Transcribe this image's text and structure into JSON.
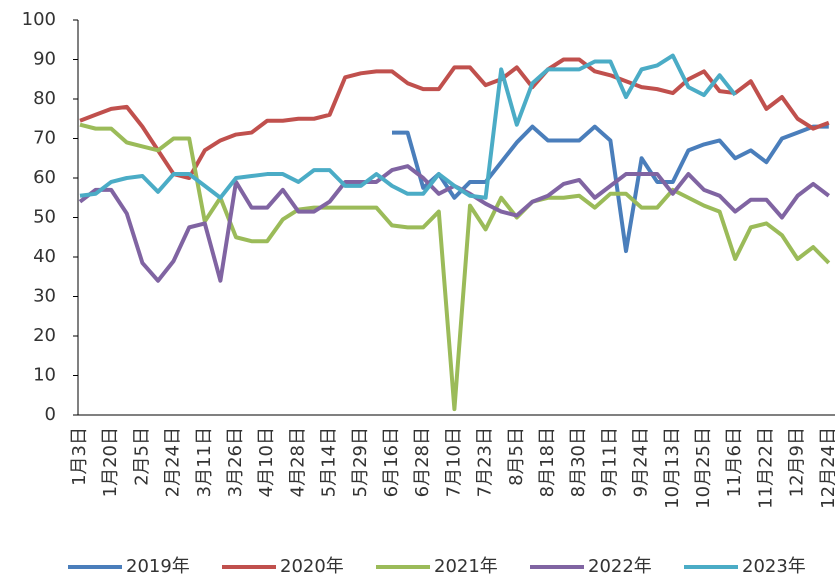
{
  "chart_data": {
    "type": "line",
    "categories": [
      "1月3日",
      null,
      "1月20日",
      null,
      "2月5日",
      null,
      "2月24日",
      null,
      "3月11日",
      null,
      "3月26日",
      null,
      "4月10日",
      null,
      "4月28日",
      null,
      "5月14日",
      null,
      "5月29日",
      null,
      "6月16日",
      null,
      "6月28日",
      null,
      "7月10日",
      null,
      "7月23日",
      null,
      "8月5日",
      null,
      "8月18日",
      null,
      "8月30日",
      null,
      "9月11日",
      null,
      "9月24日",
      null,
      "10月13日",
      null,
      "10月25日",
      null,
      "11月6日",
      null,
      "11月22日",
      null,
      "12月9日",
      null,
      "12月24日"
    ],
    "series": [
      {
        "name": "2019年",
        "color": "#4a7ebb",
        "values": [
          null,
          null,
          null,
          null,
          null,
          null,
          null,
          null,
          null,
          null,
          null,
          null,
          null,
          null,
          null,
          null,
          null,
          null,
          null,
          null,
          71.5,
          71.5,
          57.5,
          61,
          55,
          59,
          59,
          64,
          69,
          73,
          69.5,
          69.5,
          69.5,
          73,
          69.5,
          41.5,
          65,
          59,
          59,
          67,
          68.5,
          69.5,
          65,
          67,
          64,
          70,
          71.5,
          73,
          73
        ]
      },
      {
        "name": "2020年",
        "color": "#c0504d",
        "values": [
          74.5,
          76,
          77.5,
          78,
          73,
          67,
          61,
          60,
          67,
          69.5,
          71,
          71.5,
          74.5,
          74.5,
          75,
          75,
          76,
          85.5,
          86.5,
          87,
          87,
          84,
          82.5,
          82.5,
          88,
          88,
          83.5,
          85,
          88,
          83,
          87.5,
          90,
          90,
          87,
          86,
          84.5,
          83,
          82.5,
          81.5,
          85,
          87,
          82,
          81.5,
          84.5,
          77.5,
          80.5,
          75,
          72.5,
          74
        ]
      },
      {
        "name": "2021年",
        "color": "#9bbb59",
        "values": [
          73.5,
          72.5,
          72.5,
          69,
          68,
          67,
          70,
          70,
          49,
          55,
          45,
          44,
          44,
          49.5,
          52,
          52.5,
          52.5,
          52.5,
          52.5,
          52.5,
          48,
          47.5,
          47.5,
          51.5,
          1.5,
          53,
          47,
          55,
          50,
          54,
          55,
          55,
          55.5,
          52.5,
          56,
          56,
          52.5,
          52.5,
          57,
          55,
          53,
          51.5,
          39.5,
          47.5,
          48.5,
          45.5,
          39.5,
          42.5,
          38.5
        ]
      },
      {
        "name": "2022年",
        "color": "#8064a2",
        "values": [
          54,
          57,
          57,
          51,
          38.5,
          34,
          39,
          47.5,
          48.5,
          34,
          59,
          52.5,
          52.5,
          57,
          51.5,
          51.5,
          54,
          59,
          59,
          59,
          62,
          63,
          60,
          56,
          58,
          56,
          53.5,
          51.5,
          50.5,
          54,
          55.5,
          58.5,
          59.5,
          55,
          58,
          61,
          61,
          61,
          56,
          61,
          57,
          55.5,
          51.5,
          54.5,
          54.5,
          50,
          55.5,
          58.5,
          55.5
        ]
      },
      {
        "name": "2023年",
        "color": "#4bacc6",
        "values": [
          55.5,
          56,
          59,
          60,
          60.5,
          56.5,
          61,
          61,
          58,
          55,
          60,
          60.5,
          61,
          61,
          59,
          62,
          62,
          58,
          58,
          61,
          58,
          56,
          56,
          61,
          58,
          55.5,
          55,
          87.5,
          73.5,
          84,
          87.5,
          87.5,
          87.5,
          89.5,
          89.5,
          80.5,
          87.5,
          88.5,
          91,
          83,
          81,
          86,
          81,
          null,
          null,
          null,
          null,
          null,
          null
        ]
      }
    ],
    "ylim": [
      0,
      100
    ],
    "yticks": [
      0,
      10,
      20,
      30,
      40,
      50,
      60,
      70,
      80,
      90,
      100
    ],
    "grid": false,
    "legend": "bottom"
  }
}
